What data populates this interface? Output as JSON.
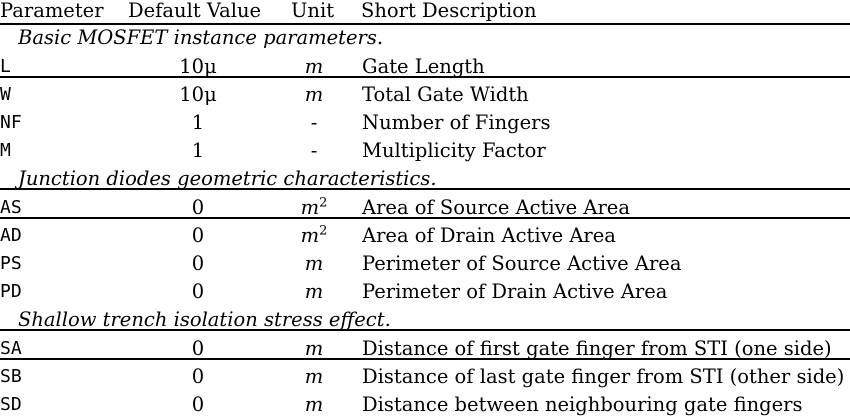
{
  "header": {
    "parameter": "Parameter",
    "default_value": "Default Value",
    "unit": "Unit",
    "description": "Short Description"
  },
  "sections": [
    {
      "title": "Basic MOSFET instance parameters.",
      "rows": [
        {
          "param": "L",
          "default": "10μ",
          "unit": "m",
          "unit_sup": "",
          "description": "Gate Length"
        },
        {
          "param": "W",
          "default": "10μ",
          "unit": "m",
          "unit_sup": "",
          "description": "Total Gate Width"
        },
        {
          "param": "NF",
          "default": "1",
          "unit": "-",
          "unit_sup": "",
          "description": "Number of Fingers"
        },
        {
          "param": "M",
          "default": "1",
          "unit": "-",
          "unit_sup": "",
          "description": "Multiplicity Factor"
        }
      ]
    },
    {
      "title": "Junction diodes geometric characteristics.",
      "rows": [
        {
          "param": "AS",
          "default": "0",
          "unit": "m",
          "unit_sup": "2",
          "description": "Area of Source Active Area"
        },
        {
          "param": "AD",
          "default": "0",
          "unit": "m",
          "unit_sup": "2",
          "description": "Area of Drain Active Area"
        },
        {
          "param": "PS",
          "default": "0",
          "unit": "m",
          "unit_sup": "",
          "description": "Perimeter of Source Active Area"
        },
        {
          "param": "PD",
          "default": "0",
          "unit": "m",
          "unit_sup": "",
          "description": "Perimeter of Drain Active Area"
        }
      ]
    },
    {
      "title": "Shallow trench isolation stress effect.",
      "rows": [
        {
          "param": "SA",
          "default": "0",
          "unit": "m",
          "unit_sup": "",
          "description": "Distance of first gate finger from STI (one side)"
        },
        {
          "param": "SB",
          "default": "0",
          "unit": "m",
          "unit_sup": "",
          "description": "Distance of last gate finger from STI (other side)"
        },
        {
          "param": "SD",
          "default": "0",
          "unit": "m",
          "unit_sup": "",
          "description": "Distance between neighbouring gate fingers"
        }
      ]
    }
  ]
}
